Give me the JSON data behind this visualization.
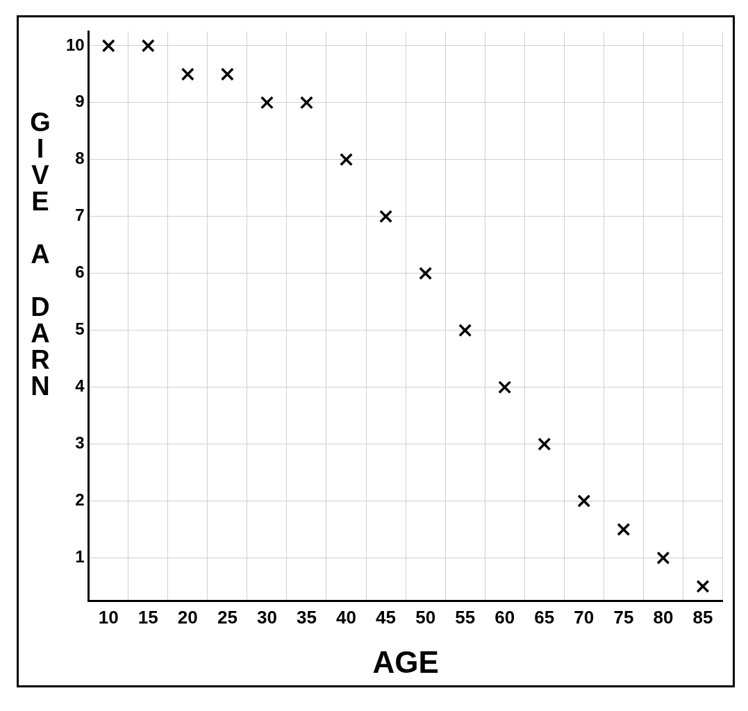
{
  "chart_data": {
    "type": "scatter",
    "xlabel": "AGE",
    "ylabel": "GIVE A DARN",
    "categories": [
      "10",
      "15",
      "20",
      "25",
      "30",
      "35",
      "40",
      "45",
      "50",
      "55",
      "60",
      "65",
      "70",
      "75",
      "80",
      "85"
    ],
    "values": [
      10,
      10,
      9.5,
      9.5,
      9,
      9,
      8,
      7,
      6,
      5,
      4,
      3,
      2,
      1.5,
      1,
      0.5
    ],
    "color": "#000000",
    "marker": "cross",
    "ylim": [
      0.25,
      10.25
    ],
    "yticks": [
      1,
      2,
      3,
      4,
      5,
      6,
      7,
      8,
      9,
      10
    ],
    "grid": true,
    "legend": false
  }
}
